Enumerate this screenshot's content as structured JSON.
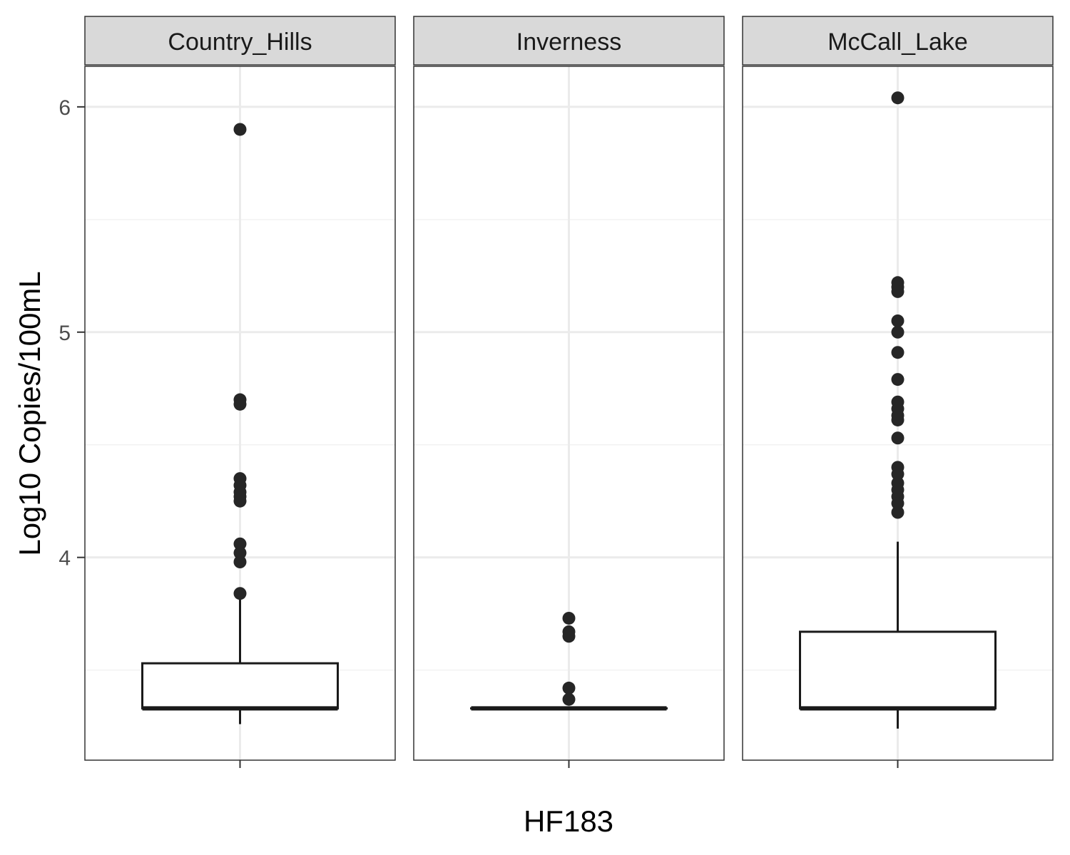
{
  "chart_data": {
    "type": "boxplot",
    "facets": [
      "Country_Hills",
      "Inverness",
      "McCall_Lake"
    ],
    "xlabel": "HF183",
    "ylabel": "Log10 Copies/100mL",
    "ylim": [
      3.1,
      6.18
    ],
    "y_ticks": [
      4,
      5,
      6
    ],
    "y_tick_labels": [
      "4",
      "5",
      "6"
    ],
    "grid": true,
    "panels": [
      {
        "facet": "Country_Hills",
        "box": {
          "lower_whisker": 3.26,
          "q1": 3.33,
          "median": 3.33,
          "q3": 3.53,
          "upper_whisker": 3.84
        },
        "outliers": [
          5.9,
          4.7,
          4.68,
          4.35,
          4.32,
          4.29,
          4.27,
          4.25,
          4.06,
          4.02,
          3.98,
          3.84
        ]
      },
      {
        "facet": "Inverness",
        "box": {
          "lower_whisker": 3.33,
          "q1": 3.33,
          "median": 3.33,
          "q3": 3.33,
          "upper_whisker": 3.33
        },
        "outliers": [
          3.73,
          3.67,
          3.65,
          3.42,
          3.37
        ]
      },
      {
        "facet": "McCall_Lake",
        "box": {
          "lower_whisker": 3.24,
          "q1": 3.33,
          "median": 3.33,
          "q3": 3.67,
          "upper_whisker": 4.07
        },
        "outliers": [
          6.04,
          5.22,
          5.2,
          5.18,
          5.05,
          5.0,
          4.91,
          4.79,
          4.69,
          4.66,
          4.63,
          4.61,
          4.53,
          4.4,
          4.37,
          4.33,
          4.3,
          4.27,
          4.24,
          4.2
        ]
      }
    ]
  },
  "colors": {
    "strip_fill": "#d9d9d9",
    "panel_border": "#333333",
    "grid_major": "#ebebeb",
    "grid_minor": "#f2f2f2",
    "box_line": "#1a1a1a",
    "point": "#262626"
  }
}
